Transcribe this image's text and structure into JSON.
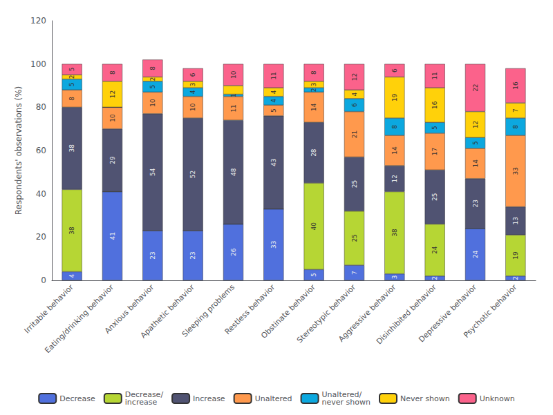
{
  "chart_data": {
    "type": "bar",
    "stacked": true,
    "ylabel": "Respondents' observations (%)",
    "categories": [
      "Irritable behavior",
      "Eating/drinking behavior",
      "Anxious behavior",
      "Apathetic behavior",
      "Sleeping problems",
      "Restless behavior",
      "Obstinate behavior",
      "Stereotypic behavior",
      "Aggressive behavior",
      "Disinhibited behavior",
      "Depressive behavior",
      "Psychotic behavior"
    ],
    "series": [
      {
        "name": "Decrease",
        "values": [
          4,
          41,
          23,
          23,
          26,
          33,
          5,
          7,
          3,
          2,
          24,
          2
        ],
        "value_labels": [
          "4",
          "41",
          "23",
          "23",
          "26",
          "33",
          "5",
          "7",
          "3",
          "2",
          "24",
          "2"
        ]
      },
      {
        "name": "Decrease/\nincrease",
        "values": [
          38,
          0,
          0,
          0,
          0,
          0,
          40,
          25,
          38,
          24,
          0,
          19
        ],
        "value_labels": [
          "38",
          null,
          null,
          null,
          null,
          null,
          "40",
          "25",
          "38",
          "24",
          null,
          "19"
        ]
      },
      {
        "name": "Increase",
        "values": [
          38,
          29,
          54,
          52,
          48,
          43,
          28,
          25,
          12,
          25,
          23,
          13
        ],
        "value_labels": [
          "38",
          "29",
          "54",
          "52",
          "48",
          "43",
          "28",
          "25",
          "12",
          "25",
          "23",
          "13"
        ]
      },
      {
        "name": "Unaltered",
        "values": [
          8,
          10,
          10,
          10,
          11,
          5,
          14,
          21,
          14,
          17,
          14,
          33
        ],
        "value_labels": [
          "8",
          "10",
          "10",
          "10",
          "11",
          "5",
          "14",
          "21",
          "14",
          "17",
          "14",
          "33"
        ]
      },
      {
        "name": "Unaltered/\nnever shown",
        "values": [
          5,
          0,
          5,
          4,
          1,
          4,
          2,
          6,
          8,
          5,
          5,
          8
        ],
        "value_labels": [
          "5",
          null,
          "5",
          "4",
          "1",
          "4",
          "2",
          "6",
          "8",
          "5",
          "5",
          "8"
        ]
      },
      {
        "name": "Never shown",
        "values": [
          2,
          12,
          2,
          3,
          4,
          4,
          3,
          4,
          19,
          16,
          12,
          7
        ],
        "value_labels": [
          "2",
          "12",
          "2",
          "3",
          null,
          "4",
          "3",
          "4",
          "19",
          "16",
          "12",
          "7"
        ]
      },
      {
        "name": "Unknown",
        "values": [
          5,
          8,
          8,
          6,
          10,
          11,
          8,
          12,
          6,
          11,
          22,
          16
        ],
        "value_labels": [
          "5",
          "8",
          "8",
          "6",
          "10",
          "11",
          "8",
          "12",
          "6",
          "11",
          "22",
          "16"
        ]
      }
    ],
    "ylim": [
      0,
      120
    ],
    "yticks": [
      0,
      20,
      40,
      60,
      80,
      100,
      120
    ],
    "data_labels": true,
    "legend": "bottom",
    "grid": false
  }
}
